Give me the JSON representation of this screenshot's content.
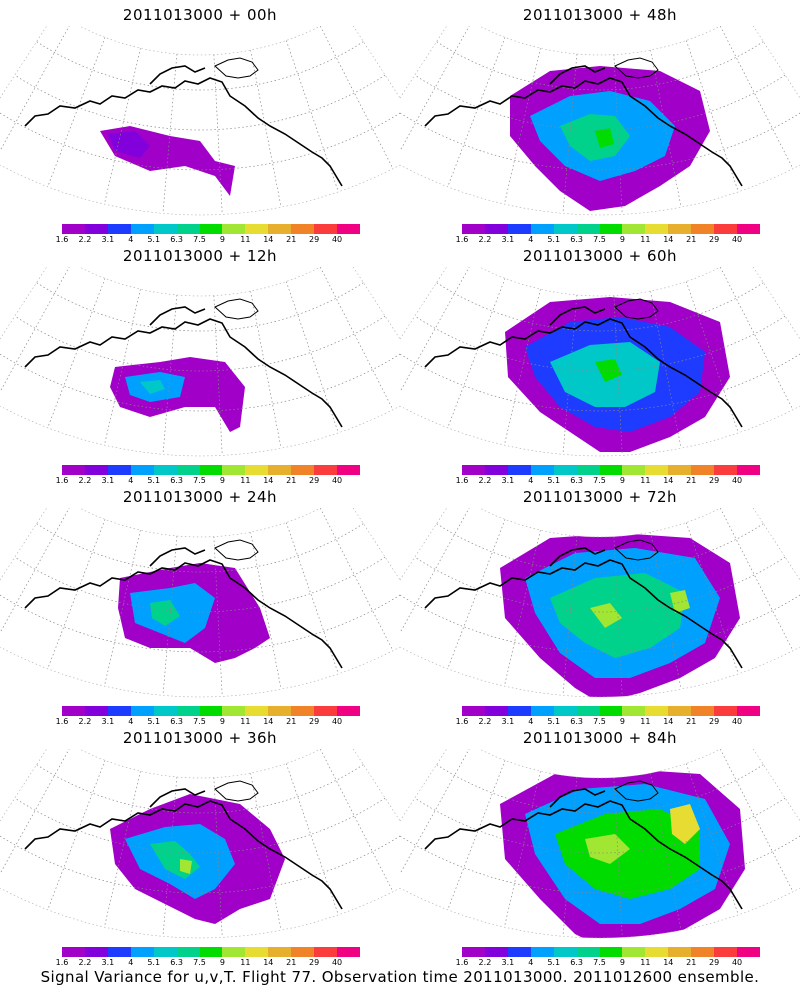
{
  "panels": [
    {
      "title": "2011013000 + 00h",
      "step": 0
    },
    {
      "title": "2011013000 + 48h",
      "step": 4
    },
    {
      "title": "2011013000 + 12h",
      "step": 1
    },
    {
      "title": "2011013000 + 60h",
      "step": 5
    },
    {
      "title": "2011013000 + 24h",
      "step": 2
    },
    {
      "title": "2011013000 + 72h",
      "step": 6
    },
    {
      "title": "2011013000 + 36h",
      "step": 3
    },
    {
      "title": "2011013000 + 84h",
      "step": 7
    }
  ],
  "colorbar": {
    "labels": [
      "1.6",
      "2.2",
      "3.1",
      "4",
      "5.1",
      "6.3",
      "7.5",
      "9",
      "11",
      "14",
      "21",
      "29",
      "40"
    ],
    "colors": [
      "#a000c8",
      "#8200dc",
      "#1e3cff",
      "#00a0ff",
      "#00c8c8",
      "#00d28c",
      "#00dc00",
      "#a0e632",
      "#e6dc32",
      "#e6af2d",
      "#f08228",
      "#fa3c3c",
      "#f00082"
    ]
  },
  "caption": "Signal Variance for u,v,T. Flight 77. Observation time 2011013000. 2011012600 ensemble."
}
